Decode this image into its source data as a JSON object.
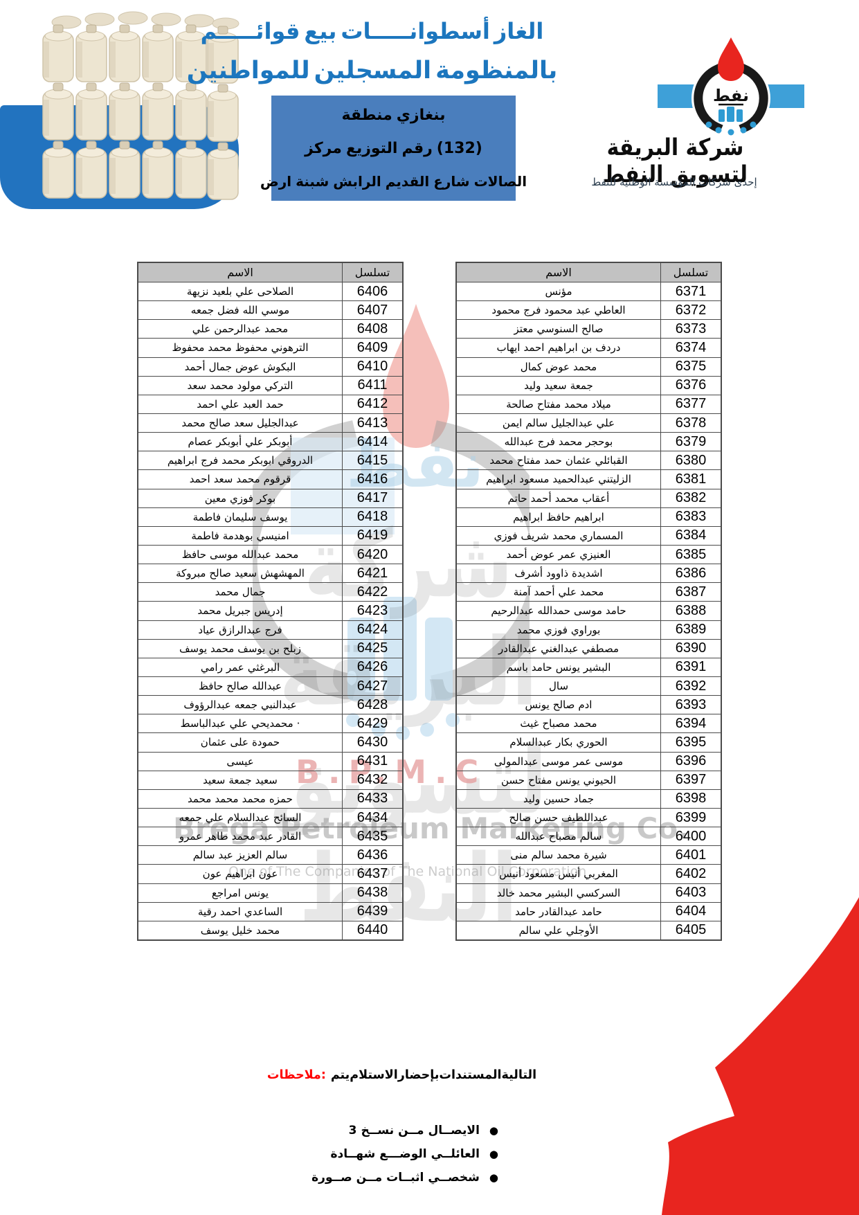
{
  "header": {
    "title_line1": "قوائـــــم بيع أسطوانـــــات الغاز",
    "title_line2": "للمواطنين المسجلين بالمنظومة",
    "region_line": "منطقة بنغازي",
    "center_line": "مركز التوزيع رقم (132)",
    "address_line": "ارض شبنة الرابش القديم شارع الصالات"
  },
  "logo": {
    "oil_word": "نفط",
    "company_calligraphy": "شركة البريقة لتسويق النفط",
    "tagline": "إحدى شركات المؤسسة الوطنية للنفط"
  },
  "watermark": {
    "company_ar": "شركة البريقة لتسويق النفط",
    "bpmc": "B.P.M.C",
    "company_en": "Brega Petroleum Marketing Co.",
    "sub_en": "One of The Companies of The National Oil Corporation"
  },
  "tables": {
    "name_header": "الاسم",
    "serial_header": "تسلسل",
    "right": {
      "rows": [
        {
          "serial": "6371",
          "name": "مؤنس"
        },
        {
          "serial": "6372",
          "name": "محمود فرج محمود عبد العاطي"
        },
        {
          "serial": "6373",
          "name": "معتز السنوسي صالح"
        },
        {
          "serial": "6374",
          "name": "ايهاب احمد ابراهيم بن دردف"
        },
        {
          "serial": "6375",
          "name": "كمال عوض محمد"
        },
        {
          "serial": "6376",
          "name": "وليد سعيد جمعة"
        },
        {
          "serial": "6377",
          "name": "صالحة مفتاح محمد ميلاد"
        },
        {
          "serial": "6378",
          "name": "ايمن سالم عبدالجليل علي"
        },
        {
          "serial": "6379",
          "name": "عبدالله فرج محمد بوحجر"
        },
        {
          "serial": "6380",
          "name": "محمد مفتاح حمد عثمان القبائلي"
        },
        {
          "serial": "6381",
          "name": "ابراهيم مسعود عبدالحميد الزليتني"
        },
        {
          "serial": "6382",
          "name": "حاتم أحمد محمد أعقاب"
        },
        {
          "serial": "6383",
          "name": "ابراهيم حافظ ابراهيم"
        },
        {
          "serial": "6384",
          "name": "فوزي شريف محمد المسماري"
        },
        {
          "serial": "6385",
          "name": "أحمد عوض عمر العنيزي"
        },
        {
          "serial": "6386",
          "name": "أشرف ذاوود اشديدة"
        },
        {
          "serial": "6387",
          "name": "آمنة أحمد علي محمد"
        },
        {
          "serial": "6388",
          "name": "عبدالرحيم حمدالله موسى حامد"
        },
        {
          "serial": "6389",
          "name": "محمد فوزي بوراوي"
        },
        {
          "serial": "6390",
          "name": "عبدالقادر عبدالغني مصطفي"
        },
        {
          "serial": "6391",
          "name": "باسم حامد يونس البشير"
        },
        {
          "serial": "6392",
          "name": "سال"
        },
        {
          "serial": "6393",
          "name": "يونس صالح ادم"
        },
        {
          "serial": "6394",
          "name": "غيث مصباح محمد"
        },
        {
          "serial": "6395",
          "name": "عبدالسلام بكار الحوري"
        },
        {
          "serial": "6396",
          "name": "عبدالمولى موسى عمر موسى"
        },
        {
          "serial": "6397",
          "name": "حسن مفتاح يونس الحيوني"
        },
        {
          "serial": "6398",
          "name": "وليد حسين جماد"
        },
        {
          "serial": "6399",
          "name": "صالح حسن عبداللطيف"
        },
        {
          "serial": "6400",
          "name": "عبدالله مصباح سالم"
        },
        {
          "serial": "6401",
          "name": "منى سالم محمد شيرة"
        },
        {
          "serial": "6402",
          "name": "أنيس مسعود أنيس المغربي"
        },
        {
          "serial": "6403",
          "name": "خالد محمد البشير السركسي"
        },
        {
          "serial": "6404",
          "name": "حامد عبدالقادر حامد"
        },
        {
          "serial": "6405",
          "name": "سالم علي الأوجلي"
        }
      ]
    },
    "left": {
      "rows": [
        {
          "serial": "6406",
          "name": "نزيهة بلعيد علي الصلاحى"
        },
        {
          "serial": "6407",
          "name": "جمعه فضل الله موسي"
        },
        {
          "serial": "6408",
          "name": "علي عبدالرحمن محمد"
        },
        {
          "serial": "6409",
          "name": "محفوظ محمد محفوظ الترهوني"
        },
        {
          "serial": "6410",
          "name": "أحمد جمال عوض البكوش"
        },
        {
          "serial": "6411",
          "name": "سعد محمد مولود التركي"
        },
        {
          "serial": "6412",
          "name": "احمد علي العبد حمد"
        },
        {
          "serial": "6413",
          "name": "محمد صالح سعد عبدالجليل"
        },
        {
          "serial": "6414",
          "name": "عصام أبوبكر علي أبوبكر"
        },
        {
          "serial": "6415",
          "name": "ابراهيم فرج محمد ابوبكر الدروقي"
        },
        {
          "serial": "6416",
          "name": "احمد سعد محمد قرقوم"
        },
        {
          "serial": "6417",
          "name": "معين فوزي بوكر"
        },
        {
          "serial": "6418",
          "name": "فاطمة سليمان يوسف"
        },
        {
          "serial": "6419",
          "name": "فاطمة بوهدمة امنيسي"
        },
        {
          "serial": "6420",
          "name": "حافظ موسى عبدالله محمد"
        },
        {
          "serial": "6421",
          "name": "مبروكة صالح سعيد المهشهش"
        },
        {
          "serial": "6422",
          "name": "محمد جمال"
        },
        {
          "serial": "6423",
          "name": "محمد جبريل إدريس"
        },
        {
          "serial": "6424",
          "name": "عياد عبدالرازق فرج"
        },
        {
          "serial": "6425",
          "name": "يوسف محمد يوسف بن زبلح"
        },
        {
          "serial": "6426",
          "name": "رامي عمر البرغثي"
        },
        {
          "serial": "6427",
          "name": "حافظ صالح عبدالله"
        },
        {
          "serial": "6428",
          "name": "عبدالرؤوف جمعه عبدالنبي"
        },
        {
          "serial": "6429",
          "name": "عبدالباسط علي محمديحي ·"
        },
        {
          "serial": "6430",
          "name": "عثمان على حمودة"
        },
        {
          "serial": "6431",
          "name": "عيسى"
        },
        {
          "serial": "6432",
          "name": "سعيد جمعة سعيد"
        },
        {
          "serial": "6433",
          "name": "محمد محمد محمد حمزه"
        },
        {
          "serial": "6434",
          "name": "جمعه علي عبدالسلام السائح"
        },
        {
          "serial": "6435",
          "name": "عمرو طاهر محمد عبد القادر"
        },
        {
          "serial": "6436",
          "name": "سالم عبد العزيز سالم"
        },
        {
          "serial": "6437",
          "name": "عون ابراهيم عون"
        },
        {
          "serial": "6438",
          "name": "امراجع يونس"
        },
        {
          "serial": "6439",
          "name": "رقية احمد الساعدي"
        },
        {
          "serial": "6440",
          "name": "يوسف خليل محمد"
        }
      ]
    }
  },
  "notes": {
    "label": "ملاحظات:",
    "text": "يتم الاستلام بإحضار المستندات التالية",
    "bullets": [
      "3 نســخ مــن الايصــال",
      "شهــادة الوضـــع العائلــي",
      "صــورة مــن اثبــات شخصــي"
    ]
  },
  "colors": {
    "title_blue": "#1C76BE",
    "box_blue": "#4A7EBD",
    "table_header_gray": "#C2C2C2",
    "flame_red": "#E8251F",
    "notes_red": "#FF0000",
    "photo_blue": "#2273BF"
  }
}
